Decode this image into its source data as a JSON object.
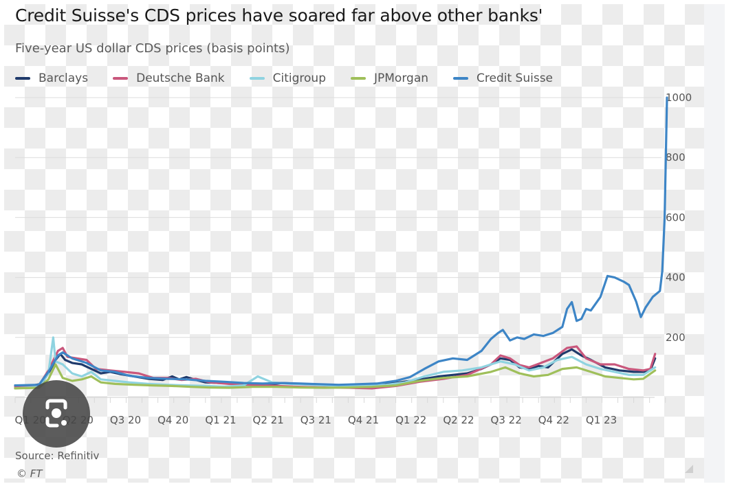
{
  "title": "Credit Suisse's CDS prices have soared far above other banks'",
  "subtitle": "Five-year US dollar CDS prices (basis points)",
  "legend": [
    {
      "label": "Barclays",
      "color": "#1f3a6b"
    },
    {
      "label": "Deutsche Bank",
      "color": "#c9577c"
    },
    {
      "label": "Citigroup",
      "color": "#8fd3e0"
    },
    {
      "label": "JPMorgan",
      "color": "#9fbf5a"
    },
    {
      "label": "Credit Suisse",
      "color": "#3d85c6"
    }
  ],
  "source": "Source: Refinitiv",
  "copyright": "© FT",
  "chart_data": {
    "type": "line",
    "title": "Credit Suisse's CDS prices have soared far above other banks'",
    "subtitle": "Five-year US dollar CDS prices (basis points)",
    "xlabel": "",
    "ylabel": "Basis points",
    "categories": [
      "Q1 20",
      "Q2 20",
      "Q3 20",
      "Q4 20",
      "Q1 21",
      "Q2 21",
      "Q3 21",
      "Q4 21",
      "Q1 22",
      "Q2 22",
      "Q3 22",
      "Q4 22",
      "Q1 23"
    ],
    "yticks": [
      200,
      400,
      600,
      800,
      1000
    ],
    "ylim": [
      0,
      1000
    ],
    "y_axis_position": "right",
    "grid": "horizontal",
    "legend_position": "top",
    "x_unit": "quarters since start of Q1 2020",
    "series": [
      {
        "name": "Barclays",
        "color": "#1f3a6b",
        "points": [
          [
            0,
            40
          ],
          [
            0.3,
            38
          ],
          [
            0.55,
            45
          ],
          [
            0.7,
            80
          ],
          [
            0.85,
            125
          ],
          [
            0.95,
            145
          ],
          [
            1.05,
            125
          ],
          [
            1.2,
            115
          ],
          [
            1.4,
            110
          ],
          [
            1.6,
            95
          ],
          [
            1.8,
            80
          ],
          [
            2.0,
            85
          ],
          [
            2.2,
            78
          ],
          [
            2.5,
            70
          ],
          [
            2.8,
            62
          ],
          [
            3.1,
            58
          ],
          [
            3.3,
            70
          ],
          [
            3.45,
            60
          ],
          [
            3.6,
            68
          ],
          [
            3.8,
            58
          ],
          [
            4.0,
            50
          ],
          [
            4.3,
            48
          ],
          [
            4.5,
            50
          ],
          [
            4.7,
            43
          ],
          [
            5.0,
            42
          ],
          [
            5.3,
            42
          ],
          [
            5.6,
            48
          ],
          [
            6.0,
            45
          ],
          [
            6.5,
            42
          ],
          [
            7.0,
            40
          ],
          [
            7.5,
            45
          ],
          [
            8.0,
            48
          ],
          [
            8.3,
            55
          ],
          [
            8.6,
            62
          ],
          [
            8.9,
            70
          ],
          [
            9.2,
            75
          ],
          [
            9.5,
            80
          ],
          [
            9.8,
            95
          ],
          [
            10.0,
            110
          ],
          [
            10.2,
            130
          ],
          [
            10.4,
            125
          ],
          [
            10.6,
            100
          ],
          [
            10.8,
            95
          ],
          [
            11.0,
            105
          ],
          [
            11.2,
            100
          ],
          [
            11.5,
            145
          ],
          [
            11.7,
            160
          ],
          [
            11.9,
            140
          ],
          [
            12.1,
            125
          ],
          [
            12.4,
            100
          ],
          [
            12.7,
            90
          ],
          [
            13.0,
            85
          ],
          [
            13.2,
            85
          ],
          [
            13.35,
            90
          ],
          [
            13.45,
            130
          ]
        ]
      },
      {
        "name": "Deutsche Bank",
        "color": "#c9577c",
        "points": [
          [
            0,
            35
          ],
          [
            0.5,
            40
          ],
          [
            0.7,
            90
          ],
          [
            0.9,
            155
          ],
          [
            1.0,
            165
          ],
          [
            1.1,
            135
          ],
          [
            1.3,
            130
          ],
          [
            1.5,
            125
          ],
          [
            1.7,
            95
          ],
          [
            2.0,
            90
          ],
          [
            2.3,
            85
          ],
          [
            2.6,
            80
          ],
          [
            2.9,
            65
          ],
          [
            3.2,
            65
          ],
          [
            3.5,
            58
          ],
          [
            3.8,
            62
          ],
          [
            4.1,
            50
          ],
          [
            4.5,
            45
          ],
          [
            5.0,
            42
          ],
          [
            5.5,
            38
          ],
          [
            6.0,
            35
          ],
          [
            6.5,
            33
          ],
          [
            7.0,
            32
          ],
          [
            7.5,
            30
          ],
          [
            8.0,
            38
          ],
          [
            8.5,
            52
          ],
          [
            9.0,
            62
          ],
          [
            9.5,
            75
          ],
          [
            10.0,
            110
          ],
          [
            10.2,
            140
          ],
          [
            10.4,
            130
          ],
          [
            10.6,
            108
          ],
          [
            10.8,
            100
          ],
          [
            11.0,
            112
          ],
          [
            11.3,
            130
          ],
          [
            11.6,
            165
          ],
          [
            11.8,
            170
          ],
          [
            12.0,
            130
          ],
          [
            12.3,
            110
          ],
          [
            12.6,
            110
          ],
          [
            12.9,
            95
          ],
          [
            13.2,
            90
          ],
          [
            13.35,
            95
          ],
          [
            13.45,
            145
          ]
        ]
      },
      {
        "name": "Citigroup",
        "color": "#8fd3e0",
        "points": [
          [
            0,
            30
          ],
          [
            0.5,
            35
          ],
          [
            0.7,
            80
          ],
          [
            0.8,
            200
          ],
          [
            0.85,
            120
          ],
          [
            1.0,
            110
          ],
          [
            1.2,
            80
          ],
          [
            1.4,
            70
          ],
          [
            1.6,
            85
          ],
          [
            1.8,
            60
          ],
          [
            2.1,
            55
          ],
          [
            2.4,
            50
          ],
          [
            2.8,
            45
          ],
          [
            3.2,
            42
          ],
          [
            3.6,
            40
          ],
          [
            4.0,
            38
          ],
          [
            4.4,
            36
          ],
          [
            4.8,
            40
          ],
          [
            5.1,
            70
          ],
          [
            5.4,
            50
          ],
          [
            5.8,
            45
          ],
          [
            6.2,
            42
          ],
          [
            6.6,
            40
          ],
          [
            7.0,
            38
          ],
          [
            7.4,
            40
          ],
          [
            7.8,
            42
          ],
          [
            8.2,
            50
          ],
          [
            8.6,
            70
          ],
          [
            9.0,
            85
          ],
          [
            9.4,
            90
          ],
          [
            9.8,
            100
          ],
          [
            10.2,
            120
          ],
          [
            10.5,
            110
          ],
          [
            10.8,
            90
          ],
          [
            11.1,
            100
          ],
          [
            11.4,
            125
          ],
          [
            11.7,
            135
          ],
          [
            12.0,
            110
          ],
          [
            12.3,
            95
          ],
          [
            12.6,
            85
          ],
          [
            12.9,
            75
          ],
          [
            13.2,
            75
          ],
          [
            13.45,
            100
          ]
        ]
      },
      {
        "name": "JPMorgan",
        "color": "#9fbf5a",
        "points": [
          [
            0,
            30
          ],
          [
            0.5,
            32
          ],
          [
            0.7,
            60
          ],
          [
            0.85,
            110
          ],
          [
            1.0,
            65
          ],
          [
            1.2,
            55
          ],
          [
            1.4,
            60
          ],
          [
            1.6,
            70
          ],
          [
            1.8,
            50
          ],
          [
            2.1,
            45
          ],
          [
            2.5,
            42
          ],
          [
            2.9,
            40
          ],
          [
            3.3,
            38
          ],
          [
            3.7,
            35
          ],
          [
            4.1,
            33
          ],
          [
            4.5,
            32
          ],
          [
            5.0,
            35
          ],
          [
            5.5,
            35
          ],
          [
            6.0,
            33
          ],
          [
            6.5,
            32
          ],
          [
            7.0,
            33
          ],
          [
            7.5,
            35
          ],
          [
            8.0,
            40
          ],
          [
            8.5,
            55
          ],
          [
            9.0,
            65
          ],
          [
            9.5,
            70
          ],
          [
            10.0,
            85
          ],
          [
            10.3,
            100
          ],
          [
            10.6,
            80
          ],
          [
            10.9,
            70
          ],
          [
            11.2,
            75
          ],
          [
            11.5,
            95
          ],
          [
            11.8,
            100
          ],
          [
            12.1,
            85
          ],
          [
            12.4,
            70
          ],
          [
            12.7,
            65
          ],
          [
            13.0,
            60
          ],
          [
            13.2,
            62
          ],
          [
            13.45,
            90
          ]
        ]
      },
      {
        "name": "Credit Suisse",
        "color": "#3d85c6",
        "points": [
          [
            0,
            40
          ],
          [
            0.5,
            42
          ],
          [
            0.7,
            85
          ],
          [
            0.9,
            140
          ],
          [
            1.0,
            150
          ],
          [
            1.2,
            130
          ],
          [
            1.5,
            115
          ],
          [
            1.8,
            90
          ],
          [
            2.1,
            85
          ],
          [
            2.4,
            72
          ],
          [
            2.8,
            65
          ],
          [
            3.2,
            62
          ],
          [
            3.6,
            60
          ],
          [
            4.0,
            55
          ],
          [
            4.4,
            52
          ],
          [
            4.8,
            48
          ],
          [
            5.2,
            46
          ],
          [
            5.6,
            48
          ],
          [
            6.0,
            46
          ],
          [
            6.4,
            44
          ],
          [
            6.8,
            42
          ],
          [
            7.2,
            44
          ],
          [
            7.6,
            46
          ],
          [
            8.0,
            55
          ],
          [
            8.3,
            68
          ],
          [
            8.6,
            95
          ],
          [
            8.9,
            120
          ],
          [
            9.2,
            130
          ],
          [
            9.5,
            125
          ],
          [
            9.8,
            155
          ],
          [
            10.0,
            195
          ],
          [
            10.15,
            215
          ],
          [
            10.25,
            225
          ],
          [
            10.4,
            190
          ],
          [
            10.55,
            200
          ],
          [
            10.7,
            195
          ],
          [
            10.9,
            210
          ],
          [
            11.1,
            205
          ],
          [
            11.3,
            215
          ],
          [
            11.5,
            235
          ],
          [
            11.6,
            295
          ],
          [
            11.7,
            318
          ],
          [
            11.8,
            255
          ],
          [
            11.9,
            262
          ],
          [
            12.0,
            295
          ],
          [
            12.1,
            290
          ],
          [
            12.3,
            335
          ],
          [
            12.45,
            405
          ],
          [
            12.6,
            400
          ],
          [
            12.8,
            385
          ],
          [
            12.9,
            375
          ],
          [
            13.05,
            320
          ],
          [
            13.15,
            268
          ],
          [
            13.25,
            300
          ],
          [
            13.4,
            335
          ],
          [
            13.55,
            355
          ],
          [
            13.6,
            420
          ],
          [
            13.65,
            600
          ],
          [
            13.7,
            1000
          ]
        ]
      }
    ]
  }
}
